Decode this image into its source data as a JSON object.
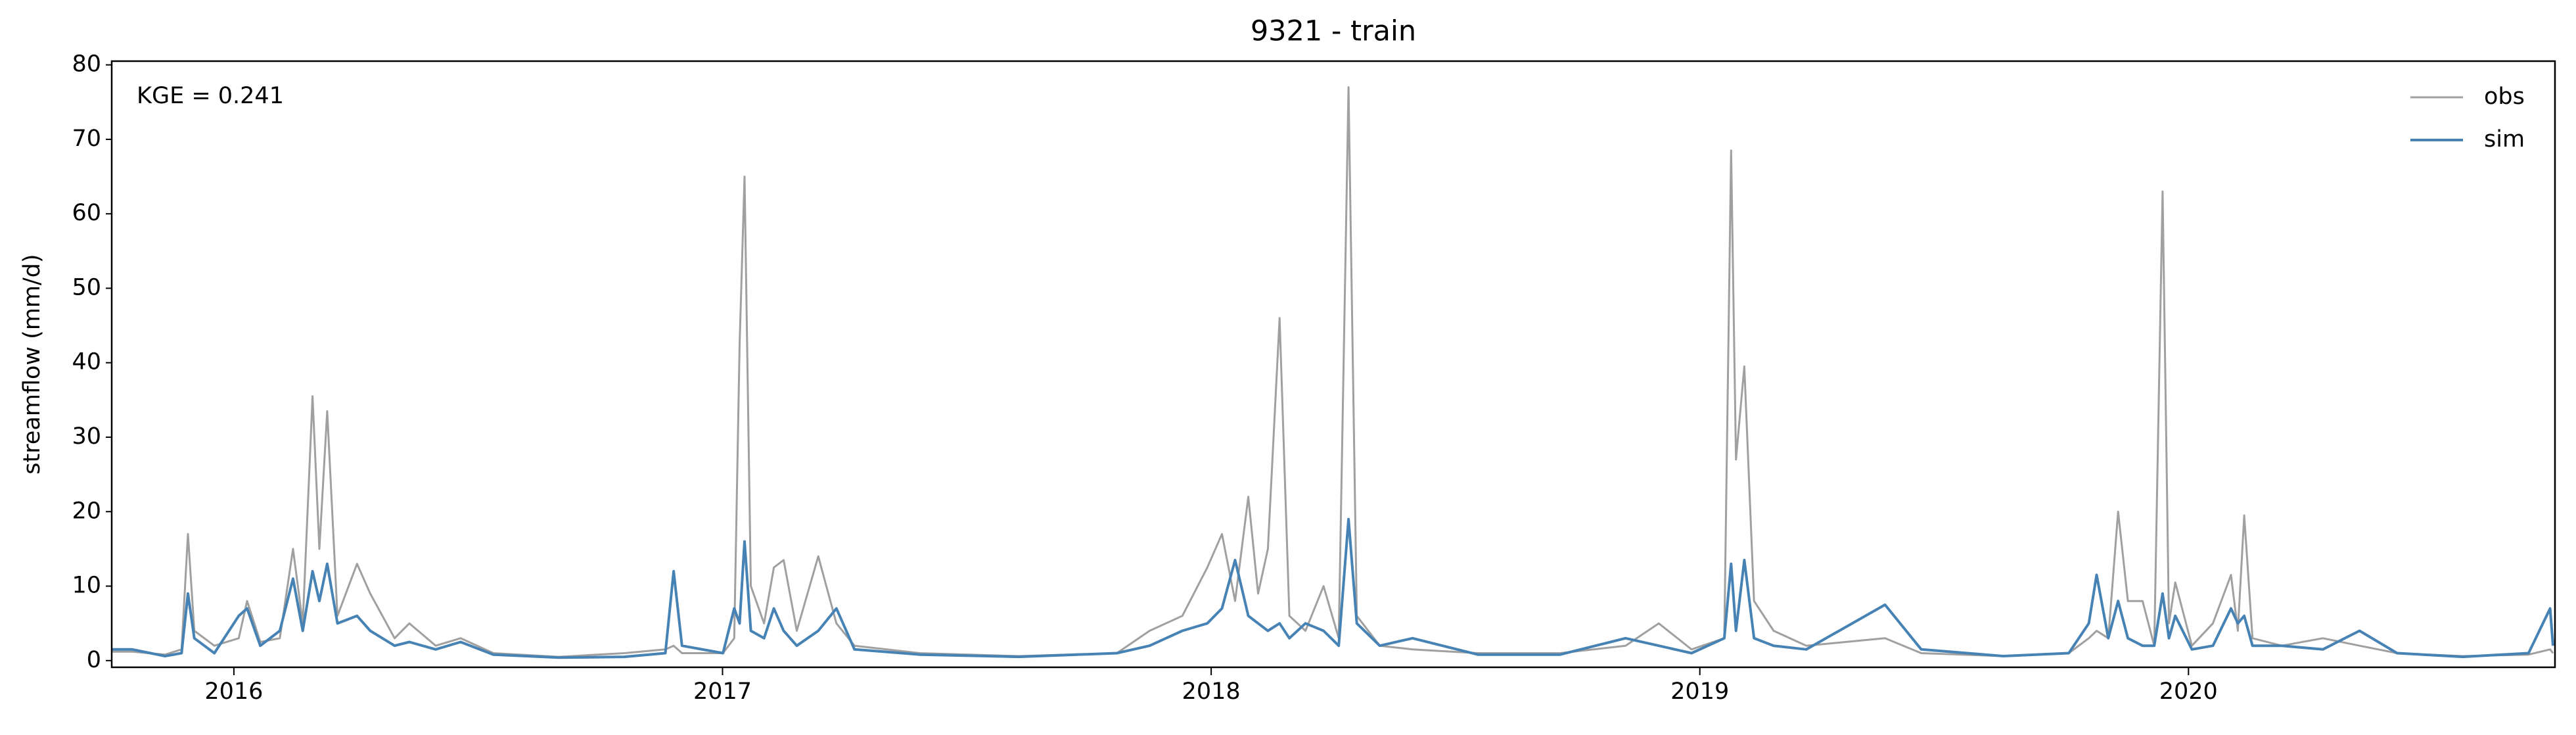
{
  "chart_data": {
    "type": "line",
    "title": "9321 - train",
    "ylabel": "streamflow (mm/d)",
    "annotation": "KGE = 0.241",
    "x": [
      2015.751,
      2015.792,
      2015.859,
      2015.893,
      2015.906,
      2015.919,
      2015.96,
      2016.01,
      2016.027,
      2016.054,
      2016.094,
      2016.121,
      2016.141,
      2016.161,
      2016.175,
      2016.191,
      2016.212,
      2016.252,
      2016.279,
      2016.329,
      2016.359,
      2016.413,
      2016.464,
      2016.531,
      2016.665,
      2016.799,
      2016.883,
      2016.9,
      2016.917,
      2017.001,
      2017.024,
      2017.035,
      2017.045,
      2017.058,
      2017.085,
      2017.105,
      2017.125,
      2017.152,
      2017.196,
      2017.233,
      2017.27,
      2017.404,
      2017.606,
      2017.807,
      2017.874,
      2017.941,
      2017.992,
      2018.022,
      2018.049,
      2018.076,
      2018.096,
      2018.116,
      2018.14,
      2018.16,
      2018.193,
      2018.23,
      2018.261,
      2018.281,
      2018.298,
      2018.345,
      2018.412,
      2018.546,
      2018.714,
      2018.848,
      2018.916,
      2018.983,
      2019.05,
      2019.064,
      2019.074,
      2019.091,
      2019.111,
      2019.151,
      2019.218,
      2019.379,
      2019.453,
      2019.621,
      2019.755,
      2019.796,
      2019.812,
      2019.836,
      2019.856,
      2019.876,
      2019.906,
      2019.93,
      2019.947,
      2019.96,
      2019.973,
      2020.007,
      2020.05,
      2020.087,
      2020.101,
      2020.114,
      2020.131,
      2020.191,
      2020.275,
      2020.35,
      2020.427,
      2020.561,
      2020.696,
      2020.74,
      2020.746
    ],
    "series": [
      {
        "name": "obs",
        "color": "#a0a0a0",
        "values": [
          1.2,
          1.2,
          0.8,
          1.5,
          17,
          4,
          2,
          3,
          8,
          2.5,
          3,
          15,
          5,
          35.5,
          15,
          33.5,
          6,
          13,
          9,
          3,
          5,
          2,
          3,
          1,
          0.5,
          1,
          1.5,
          2,
          1,
          1,
          3,
          42.5,
          65,
          10,
          5,
          12.5,
          13.5,
          4,
          14,
          5,
          2,
          1,
          0.6,
          1,
          4,
          6,
          12.5,
          17,
          8,
          22,
          9,
          15,
          46,
          6,
          4,
          10,
          3,
          77,
          6,
          2,
          1.5,
          1,
          1,
          2,
          5,
          1.5,
          3,
          68.5,
          27,
          39.5,
          8,
          4,
          2,
          3,
          1,
          0.6,
          1,
          3,
          4,
          3,
          20,
          8,
          8,
          2,
          63,
          5,
          10.5,
          2,
          5,
          11.5,
          4,
          19.5,
          3,
          2,
          3,
          2,
          1,
          0.6,
          0.8,
          1.5,
          1
        ]
      },
      {
        "name": "sim",
        "color": "#4682b4",
        "values": [
          1.5,
          1.5,
          0.6,
          1,
          9,
          3,
          1,
          6,
          7,
          2,
          4,
          11,
          4,
          12,
          8,
          13,
          5,
          6,
          4,
          2,
          2.5,
          1.5,
          2.5,
          0.8,
          0.4,
          0.5,
          1,
          12,
          2,
          1,
          7,
          5,
          16,
          4,
          3,
          7,
          4,
          2,
          4,
          7,
          1.5,
          0.8,
          0.5,
          1,
          2,
          4,
          5,
          7,
          13.5,
          6,
          5,
          4,
          5,
          3,
          5,
          4,
          2,
          19,
          5,
          2,
          3,
          0.8,
          0.8,
          3,
          2,
          1,
          3,
          13,
          4,
          13.5,
          3,
          2,
          1.5,
          7.5,
          1.5,
          0.6,
          1,
          5,
          11.5,
          3,
          8,
          3,
          2,
          2,
          9,
          3,
          6,
          1.5,
          2,
          7,
          5,
          6,
          2,
          2,
          1.5,
          4,
          1,
          0.5,
          1,
          7,
          2
        ]
      }
    ],
    "xlim": [
      2015.75,
      2020.75
    ],
    "xticks": [
      2016,
      2017,
      2018,
      2019,
      2020
    ],
    "ylim": [
      -0.9,
      80.5
    ],
    "yticks": [
      0,
      10,
      20,
      30,
      40,
      50,
      60,
      70,
      80
    ],
    "legend": "upper right"
  }
}
